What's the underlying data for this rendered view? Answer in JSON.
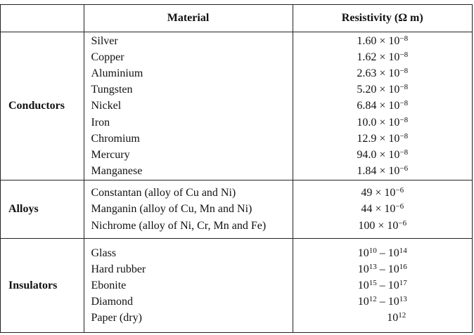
{
  "header": {
    "col_group": "",
    "col_material": "Material",
    "col_resistivity": "Resistivity (Ω m)"
  },
  "groups": [
    {
      "name": "Conductors",
      "rows": [
        {
          "material": "Silver",
          "mantissa": "1.60 × 10",
          "exponent": "−8"
        },
        {
          "material": "Copper",
          "mantissa": "1.62 × 10",
          "exponent": "−8"
        },
        {
          "material": "Aluminium",
          "mantissa": "2.63 × 10",
          "exponent": "−8"
        },
        {
          "material": "Tungsten",
          "mantissa": "5.20 × 10",
          "exponent": "−8"
        },
        {
          "material": "Nickel",
          "mantissa": "6.84 × 10",
          "exponent": "−8"
        },
        {
          "material": "Iron",
          "mantissa": "10.0 × 10",
          "exponent": "−8"
        },
        {
          "material": "Chromium",
          "mantissa": "12.9 × 10",
          "exponent": "−8"
        },
        {
          "material": "Mercury",
          "mantissa": "94.0 × 10",
          "exponent": "−8"
        },
        {
          "material": "Manganese",
          "mantissa": "1.84 × 10",
          "exponent": "−6"
        }
      ]
    },
    {
      "name": "Alloys",
      "rows": [
        {
          "material": "Constantan (alloy of Cu and Ni)",
          "mantissa": "49 × 10",
          "exponent": "−6"
        },
        {
          "material": "Manganin (alloy of Cu, Mn and Ni)",
          "mantissa": "44 × 10",
          "exponent": "−6"
        },
        {
          "material": "Nichrome (alloy of Ni, Cr, Mn and Fe)",
          "mantissa": "100 × 10",
          "exponent": "−6"
        }
      ]
    },
    {
      "name": "Insulators",
      "rows": [
        {
          "material": "Glass",
          "base1": "10",
          "exp1": "10",
          "sep": " – ",
          "base2": "10",
          "exp2": "14"
        },
        {
          "material": "Hard rubber",
          "base1": "10",
          "exp1": "13",
          "sep": " – ",
          "base2": "10",
          "exp2": "16"
        },
        {
          "material": "Ebonite",
          "base1": "10",
          "exp1": "15",
          "sep": " – ",
          "base2": "10",
          "exp2": "17"
        },
        {
          "material": "Diamond",
          "base1": "10",
          "exp1": "12",
          "sep": " – ",
          "base2": "10",
          "exp2": "13"
        },
        {
          "material": "Paper (dry)",
          "base1": "10",
          "exp1": "12"
        }
      ]
    }
  ]
}
